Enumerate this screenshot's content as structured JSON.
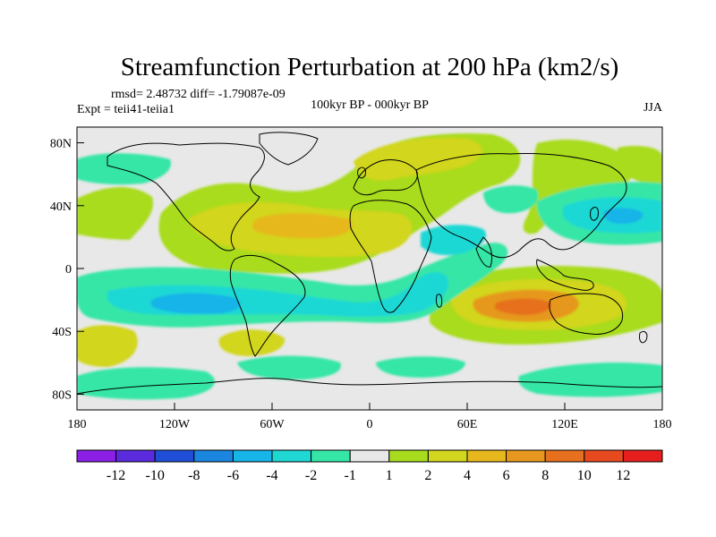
{
  "map": {
    "title": "Streamfunction Perturbation at 200 hPa (km2/s)",
    "stats_line": "rmsd= 2.48732 diff= -1.79087e-09",
    "expt_line": "Expt = teii41-teiia1",
    "period_line": "100kyr BP - 000kyr BP",
    "season": "JJA",
    "lat_ticks": [
      {
        "label": "80N",
        "lat": 80
      },
      {
        "label": "40N",
        "lat": 40
      },
      {
        "label": "0",
        "lat": 0
      },
      {
        "label": "40S",
        "lat": -40
      },
      {
        "label": "80S",
        "lat": -80
      }
    ],
    "lon_ticks": [
      {
        "label": "180",
        "lon": -180
      },
      {
        "label": "120W",
        "lon": -120
      },
      {
        "label": "60W",
        "lon": -60
      },
      {
        "label": "0",
        "lon": 0
      },
      {
        "label": "60E",
        "lon": 60
      },
      {
        "label": "120E",
        "lon": 120
      },
      {
        "label": "180",
        "lon": 180
      }
    ],
    "lat_range": [
      -90,
      90
    ],
    "lon_range": [
      -180,
      180
    ]
  },
  "colorbar": {
    "colors": [
      "#8b1fe6",
      "#5a2bdc",
      "#1f4fd6",
      "#1a86e0",
      "#17b4e8",
      "#1fd8d4",
      "#36e6a6",
      "#e8e8e8",
      "#a8dc1e",
      "#d2d61e",
      "#e6b81e",
      "#e6981e",
      "#e6701e",
      "#e64a1e",
      "#e61e1e"
    ],
    "labels": [
      "-12",
      "-10",
      "-8",
      "-6",
      "-4",
      "-2",
      "-1",
      "1",
      "2",
      "4",
      "6",
      "8",
      "10",
      "12"
    ]
  }
}
